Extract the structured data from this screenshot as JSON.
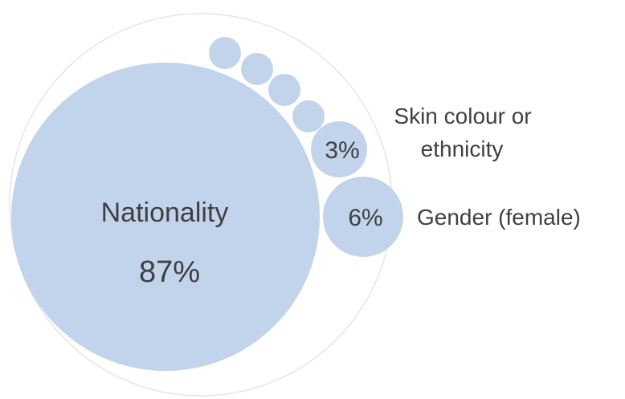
{
  "chart_data": {
    "type": "bubble",
    "title": "",
    "colors": {
      "bubble": "#c2d4ec",
      "outline": "#e6e6e6",
      "text": "#404040"
    },
    "items": [
      {
        "category": "Nationality",
        "value": 87,
        "value_label": "87%",
        "inside_label": "Nationality"
      },
      {
        "category": "Gender (female)",
        "value": 6,
        "value_label": "6%",
        "outside_label": "Gender (female)"
      },
      {
        "category": "Skin colour or ethnicity",
        "value": 3,
        "value_label": "3%",
        "outside_label_lines": [
          "Skin colour or",
          "ethnicity"
        ]
      }
    ],
    "unlabeled_small_bubbles": 4
  }
}
